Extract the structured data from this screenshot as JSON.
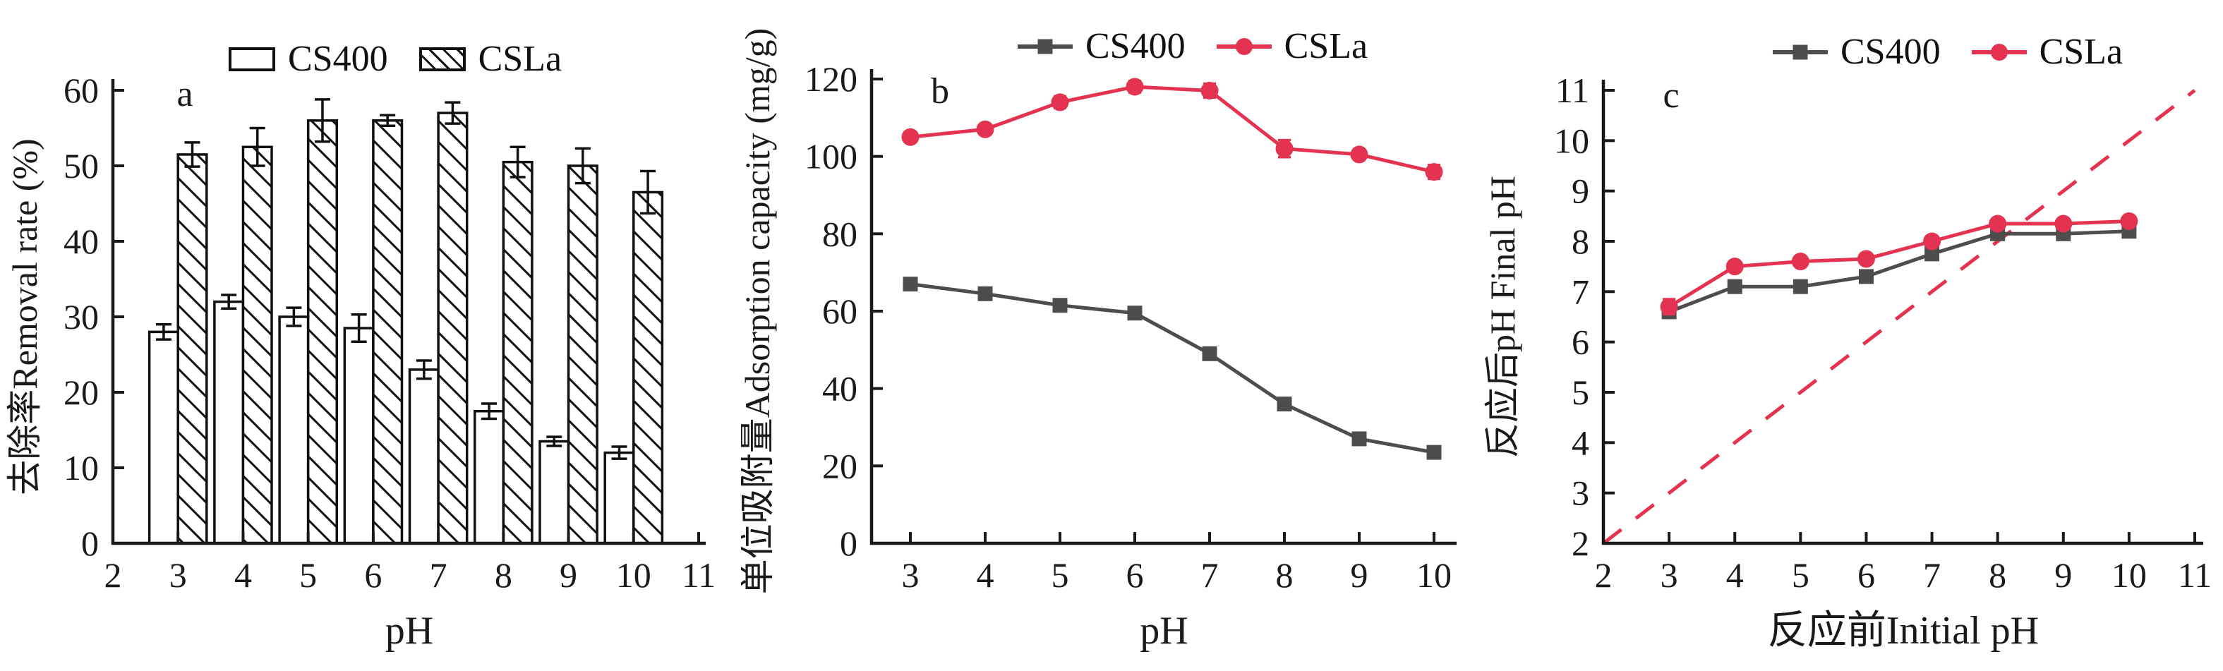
{
  "figure": {
    "description": "Three-panel adsorption figure comparing CS400 and CSLa",
    "background": "#ffffff"
  },
  "colors": {
    "axis_black": "#1a1a1a",
    "cs400_gray": "#4d4d4d",
    "csla_red": "#e43350",
    "bar_outline": "#111111"
  },
  "legend": {
    "cs400_label": "CS400",
    "csla_label": "CSLa"
  },
  "chart_data": [
    {
      "type": "bar",
      "panel_label": "a",
      "xlabel": "pH",
      "ylabel": "去除率Removal rate (%)",
      "categories": [
        3,
        4,
        5,
        6,
        7,
        8,
        9,
        10
      ],
      "xticks": [
        2,
        3,
        4,
        5,
        6,
        7,
        8,
        9,
        10,
        11
      ],
      "xlim": [
        2,
        11
      ],
      "yticks": [
        0,
        10,
        20,
        30,
        40,
        50,
        60
      ],
      "ylim": [
        0,
        60
      ],
      "grid": false,
      "legend_position": "top-center",
      "series": [
        {
          "name": "CS400",
          "style": "open",
          "color": "#111111",
          "values": [
            28,
            32,
            30,
            28.5,
            23,
            17.5,
            13.5,
            12
          ],
          "errors": [
            1,
            0.9,
            1.2,
            1.8,
            1.2,
            1,
            0.6,
            0.8
          ]
        },
        {
          "name": "CSLa",
          "style": "hatched",
          "color": "#111111",
          "values": [
            51.5,
            52.5,
            56,
            56,
            57,
            50.5,
            50,
            46.5
          ],
          "errors": [
            1.6,
            2.5,
            2.8,
            0.7,
            1.4,
            2,
            2.3,
            2.8
          ]
        }
      ]
    },
    {
      "type": "line",
      "panel_label": "b",
      "xlabel": "pH",
      "ylabel": "单位吸附量Adsorption capacity (mg/g)",
      "x": [
        3,
        4,
        5,
        6,
        7,
        8,
        9,
        10
      ],
      "xticks": [
        3,
        4,
        5,
        6,
        7,
        8,
        9,
        10
      ],
      "xlim": [
        3,
        10
      ],
      "yticks": [
        0,
        20,
        40,
        60,
        80,
        100,
        120
      ],
      "ylim": [
        0,
        120
      ],
      "grid": false,
      "legend_position": "top-center",
      "series": [
        {
          "name": "CS400",
          "marker": "square",
          "color": "#4d4d4d",
          "values": [
            67,
            64.5,
            61.5,
            59.5,
            49,
            36,
            27,
            23.5
          ],
          "errors": [
            1,
            1,
            1,
            1.5,
            1.5,
            1.2,
            1,
            1
          ]
        },
        {
          "name": "CSLa",
          "marker": "circle",
          "color": "#e43350",
          "values": [
            105,
            107,
            114,
            118,
            117,
            102,
            100.5,
            96
          ],
          "errors": [
            1.2,
            1,
            1.5,
            1.5,
            1.8,
            2.2,
            1.3,
            1.8
          ]
        }
      ]
    },
    {
      "type": "line",
      "panel_label": "c",
      "xlabel": "反应前Initial pH",
      "ylabel": "反应后pH Final pH",
      "x": [
        3,
        4,
        5,
        6,
        7,
        8,
        9,
        10
      ],
      "xticks": [
        2,
        3,
        4,
        5,
        6,
        7,
        8,
        9,
        10,
        11
      ],
      "xlim": [
        2,
        11
      ],
      "yticks": [
        2,
        3,
        4,
        5,
        6,
        7,
        8,
        9,
        10,
        11
      ],
      "ylim": [
        2,
        11
      ],
      "grid": false,
      "legend_position": "top-center",
      "refline": {
        "name": "identity-line",
        "style": "dashed",
        "color": "#e43350",
        "from": [
          2,
          2
        ],
        "to": [
          11,
          11
        ]
      },
      "series": [
        {
          "name": "CS400",
          "marker": "square",
          "color": "#4d4d4d",
          "values": [
            6.6,
            7.1,
            7.1,
            7.3,
            7.75,
            8.15,
            8.15,
            8.2
          ],
          "errors": [
            0.12,
            0.05,
            0.05,
            0.05,
            0.05,
            0.05,
            0.05,
            0.08
          ]
        },
        {
          "name": "CSLa",
          "marker": "circle",
          "color": "#e43350",
          "values": [
            6.7,
            7.5,
            7.6,
            7.65,
            8.0,
            8.35,
            8.35,
            8.4
          ],
          "errors": [
            0.15,
            0.05,
            0.05,
            0.05,
            0.05,
            0.05,
            0.05,
            0.1
          ]
        }
      ]
    }
  ]
}
